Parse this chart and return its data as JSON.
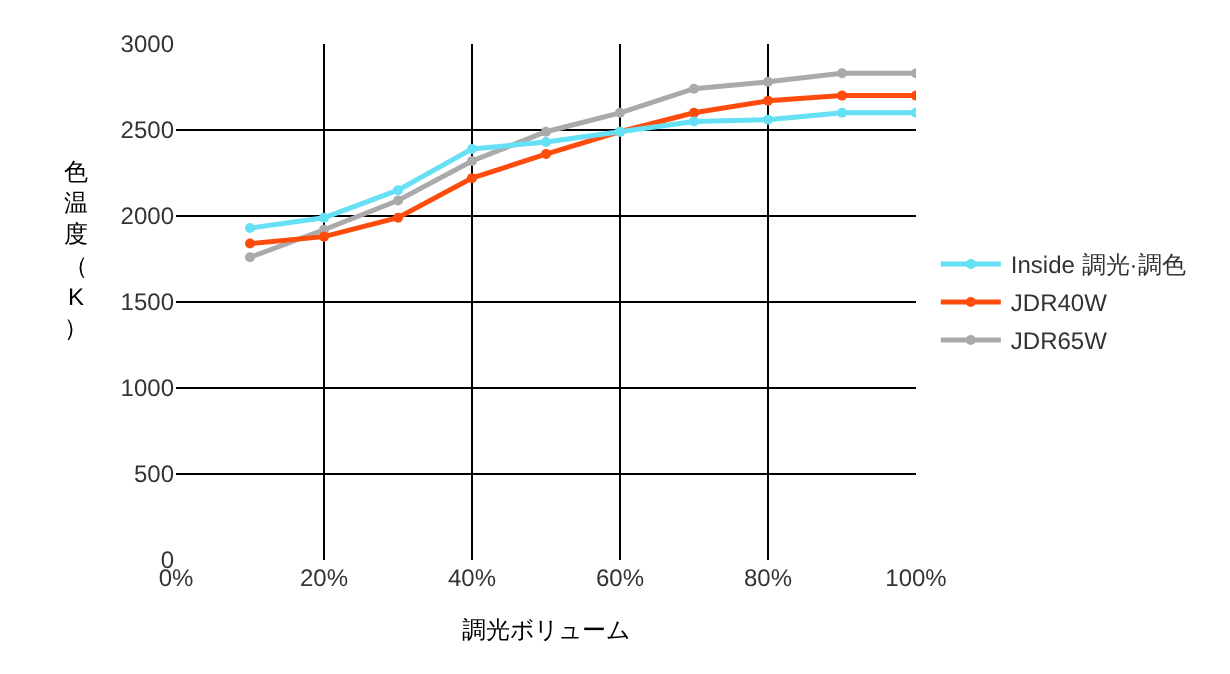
{
  "chart_data": {
    "type": "line",
    "xlabel": "調光ボリューム",
    "ylabel": "色温度（K）",
    "x": [
      10,
      20,
      30,
      40,
      50,
      60,
      70,
      80,
      90,
      100
    ],
    "xlim": [
      0,
      100
    ],
    "xticks": [
      {
        "value": 0,
        "label": "0%"
      },
      {
        "value": 20,
        "label": "20%"
      },
      {
        "value": 40,
        "label": "40%"
      },
      {
        "value": 60,
        "label": "60%"
      },
      {
        "value": 80,
        "label": "80%"
      },
      {
        "value": 100,
        "label": "100%"
      }
    ],
    "ylim": [
      0,
      3000
    ],
    "yticks": [
      0,
      500,
      1000,
      1500,
      2000,
      2500,
      3000
    ],
    "grid": true,
    "legend": "right",
    "marker": "circle",
    "line_style": "solid",
    "series": [
      {
        "name": "Inside 調光·調色",
        "color": "#66e0f5",
        "values": [
          1930,
          1990,
          2150,
          2390,
          2430,
          2490,
          2550,
          2560,
          2600,
          2600
        ]
      },
      {
        "name": "JDR40W",
        "color": "#ff4c0d",
        "values": [
          1840,
          1880,
          1990,
          2220,
          2360,
          2490,
          2600,
          2670,
          2700,
          2700
        ]
      },
      {
        "name": "JDR65W",
        "color": "#aaaaaa",
        "values": [
          1760,
          1920,
          2090,
          2320,
          2490,
          2600,
          2740,
          2780,
          2830,
          2830
        ]
      }
    ]
  }
}
